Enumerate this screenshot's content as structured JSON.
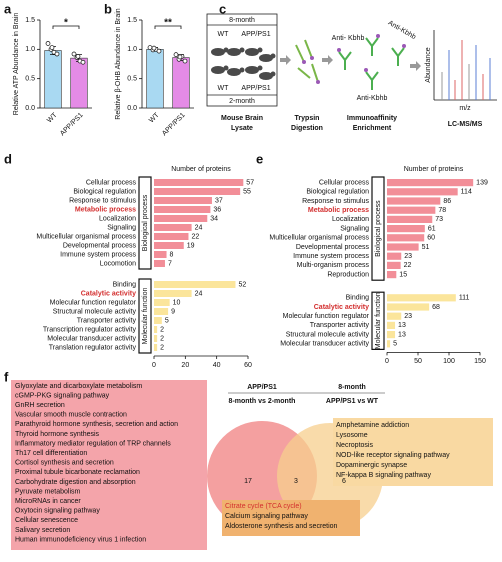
{
  "chart_data": [
    {
      "type": "bar",
      "panel_label": "a",
      "y_label": "Relative ATP Abundance in Brain",
      "categories": [
        "WT",
        "APP/PS1"
      ],
      "values": [
        0.98,
        0.85
      ],
      "errors": [
        0.07,
        0.06
      ],
      "points": [
        [
          1.1,
          1.0,
          0.95,
          0.92,
          1.03
        ],
        [
          0.92,
          0.86,
          0.8,
          0.78,
          0.88
        ]
      ],
      "colors": [
        "#a9d9f2",
        "#e48be6"
      ],
      "ylim": [
        0,
        1.5
      ],
      "yticks": [
        {
          "value": 0,
          "label": "0.0"
        },
        0.5,
        {
          "value": 1,
          "label": "1.0"
        },
        1.5
      ],
      "significance": "*"
    },
    {
      "type": "bar",
      "panel_label": "b",
      "y_label": "Relative β-OHB Abundance in Brain",
      "categories": [
        "WT",
        "APP/PS1"
      ],
      "values": [
        1.0,
        0.86
      ],
      "errors": [
        0.03,
        0.05
      ],
      "points": [
        [
          1.03,
          0.99,
          1.0,
          0.97,
          1.02
        ],
        [
          0.91,
          0.83,
          0.88,
          0.8,
          0.87
        ]
      ],
      "colors": [
        "#a9d9f2",
        "#e48be6"
      ],
      "ylim": [
        0,
        1.5
      ],
      "yticks": [
        {
          "value": 0,
          "label": "0.0"
        },
        0.5,
        {
          "value": 1,
          "label": "1.0"
        },
        1.5
      ],
      "significance": "**"
    },
    {
      "type": "hbar",
      "panel_label": "d",
      "title": "Number of proteins",
      "xlim": [
        0,
        60
      ],
      "xticks": [
        0,
        20,
        40,
        60
      ],
      "highlight_color": "#d32f2f",
      "groups": [
        {
          "name": "Biological process",
          "color": "#f28e98",
          "highlight": 3,
          "categories": [
            "Cellular process",
            "Biological regulation",
            "Response to stimulus",
            "Metabolic process",
            "Localization",
            "Signaling",
            "Multicellular organismal process",
            "Developmental process",
            "Immune system process",
            "Locomotion"
          ],
          "values": [
            57,
            55,
            37,
            36,
            34,
            24,
            22,
            19,
            8,
            7
          ]
        },
        {
          "name": "Molecular function",
          "color": "#fbe59b",
          "highlight": 1,
          "categories": [
            "Binding",
            "Catalytic activity",
            "Molecular function regulator",
            "Structural molecule activity",
            "Transporter activity",
            "Transcription regulator activity",
            "Molecular transducer activity",
            "Translation regulator activity"
          ],
          "values": [
            52,
            24,
            10,
            9,
            5,
            2,
            2,
            2
          ]
        }
      ]
    },
    {
      "type": "hbar",
      "panel_label": "e",
      "title": "Number of proteins",
      "xlim": [
        0,
        150
      ],
      "xticks": [
        0,
        50,
        100,
        150
      ],
      "highlight_color": "#d32f2f",
      "groups": [
        {
          "name": "Biological process",
          "color": "#f28e98",
          "highlight": 3,
          "categories": [
            "Cellular process",
            "Biological regulation",
            "Response to stimulus",
            "Metabolic process",
            "Localization",
            "Signaling",
            "Multicellular organismal process",
            "Developmental process",
            "Immune system process",
            "Multi-organism process",
            "Reproduction"
          ],
          "values": [
            139,
            114,
            86,
            78,
            73,
            61,
            60,
            51,
            23,
            22,
            15
          ]
        },
        {
          "name": "Molecular function",
          "color": "#fbe59b",
          "highlight": 1,
          "categories": [
            "Binding",
            "Catalytic activity",
            "Molecular function regulator",
            "Transporter activity",
            "Structural molecule activity",
            "Molecular transducer activity"
          ],
          "values": [
            111,
            68,
            23,
            13,
            13,
            5
          ]
        }
      ]
    }
  ],
  "panel_c": {
    "panel_label": "c",
    "box_top": "8-month",
    "groups_top": [
      "WT",
      "APP/PS1"
    ],
    "groups_bottom": [
      "WT",
      "APP/PS1"
    ],
    "box_bottom": "2-month",
    "steps": [
      [
        "Mouse Brain",
        "Lysate"
      ],
      [
        "Trypsin",
        "Digestion"
      ],
      [
        "Immunoaffinity",
        "Enrichment"
      ],
      [
        "LC-MS/MS"
      ]
    ],
    "antibody_labels": [
      "Anti- Kbhb",
      "Anti-Kbhb",
      "Anti-Kbhb"
    ],
    "spectrum_y_label": "Abundance",
    "spectrum_x_label": "m/z"
  },
  "panel_f": {
    "panel_label": "f",
    "left_set": [
      "APP/PS1",
      "8-month vs 2-month"
    ],
    "right_set": [
      "8-month",
      "APP/PS1 vs WT"
    ],
    "counts": {
      "left_only": 17,
      "both": 3,
      "right_only": 6
    },
    "highlight_color": "#d32f2f",
    "left_pathways": [
      "Glyoxylate and dicarboxylate metabolism",
      "cGMP-PKG signaling pathway",
      "GnRH secretion",
      "Vascular smooth muscle contraction",
      "Parathyroid hormone synthesis, secretion and action",
      "Thyroid hormone synthesis",
      "Inflammatory mediator regulation of TRP channels",
      "Th17 cell differentiation",
      "Cortisol synthesis and secretion",
      "Proximal tubule bicarbonate reclamation",
      "Carbohydrate digestion and absorption",
      "Pyruvate metabolism",
      "MicroRNAs in cancer",
      "Oxytocin signaling pathway",
      "Cellular senescence",
      "Salivary secretion",
      "Human immunodeficiency virus 1 infection"
    ],
    "right_pathways": [
      "Amphetamine addiction",
      "Lysosome",
      "Necroptosis",
      "NOD-like receptor signaling pathway",
      "Dopaminergic synapse",
      "NF-kappa B signaling pathway"
    ],
    "shared_pathways": [
      "Citrate cycle (TCA cycle)",
      "Calcium signaling pathway",
      "Aldosterone synthesis and secretion"
    ]
  }
}
